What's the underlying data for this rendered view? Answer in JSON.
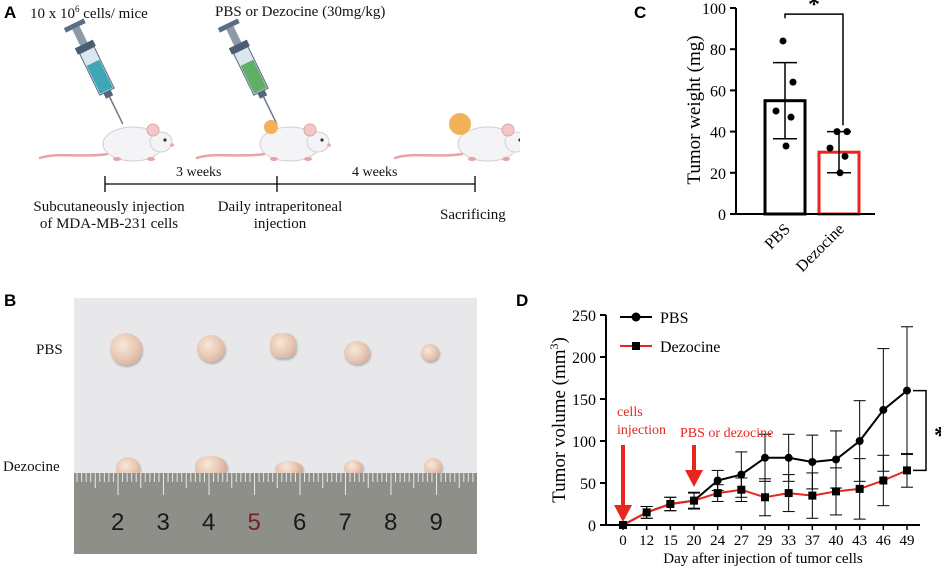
{
  "panels": {
    "a": "A",
    "b": "B",
    "c": "C",
    "d": "D"
  },
  "panel_a": {
    "injection1": "10 x 10",
    "injection1_sup": "6",
    "injection1_tail": " cells/ mice",
    "injection2": "PBS or Dezocine (30mg/kg)",
    "interval1": "3 weeks",
    "interval2": "4 weeks",
    "step1_line1": "Subcutaneously injection",
    "step1_line2": "of MDA-MB-231 cells",
    "step2_line1": "Daily intraperitoneal",
    "step2_line2": "injection",
    "step3": "Sacrificing"
  },
  "panel_b": {
    "row1": "PBS",
    "row2": "Dezocine",
    "ruler_numbers": [
      "2",
      "3",
      "4",
      "5",
      "6",
      "7",
      "8",
      "9"
    ]
  },
  "colors": {
    "pbs": "#000000",
    "dezocine": "#e8251f",
    "annotation": "#e8251f"
  },
  "chart_data": [
    {
      "type": "bar",
      "ylabel": "Tumor  weight (mg)",
      "ylim": [
        0,
        100
      ],
      "yticks": [
        "0",
        "20",
        "40",
        "60",
        "80",
        "100"
      ],
      "categories": [
        "PBS",
        "Dezocine"
      ],
      "values": [
        55,
        30
      ],
      "errors": [
        18.5,
        10
      ],
      "points": [
        [
          84,
          64,
          50,
          47,
          33
        ],
        [
          40,
          40,
          32,
          28,
          20
        ]
      ],
      "significance": "*"
    },
    {
      "type": "line",
      "ylabel": "Tumor  volume (mm",
      "ylabel_sup": "3",
      "ylabel_tail": ")",
      "xlabel": "Day after injection of tumor cells",
      "ylim": [
        0,
        250
      ],
      "yticks": [
        "0",
        "50",
        "100",
        "150",
        "200",
        "250"
      ],
      "x": [
        "0",
        "12",
        "15",
        "20",
        "24",
        "27",
        "29",
        "33",
        "37",
        "40",
        "43",
        "46",
        "49"
      ],
      "series": [
        {
          "name": "PBS",
          "values": [
            0,
            15,
            25,
            29,
            53,
            60,
            80,
            80,
            75,
            78,
            100,
            137,
            160
          ],
          "errors": [
            0,
            7,
            8,
            10,
            12,
            27,
            28,
            28,
            32,
            34,
            48,
            73,
            76
          ]
        },
        {
          "name": "Dezocine",
          "values": [
            0,
            15,
            25,
            29,
            38,
            42,
            33,
            38,
            35,
            40,
            43,
            53,
            65
          ],
          "errors": [
            0,
            7,
            8,
            9,
            10,
            14,
            22,
            22,
            27,
            28,
            36,
            30,
            20
          ]
        }
      ],
      "annotation1_line1": "cells",
      "annotation1_line2": "injection",
      "annotation2": "PBS or dezocine",
      "significance": "*"
    }
  ]
}
